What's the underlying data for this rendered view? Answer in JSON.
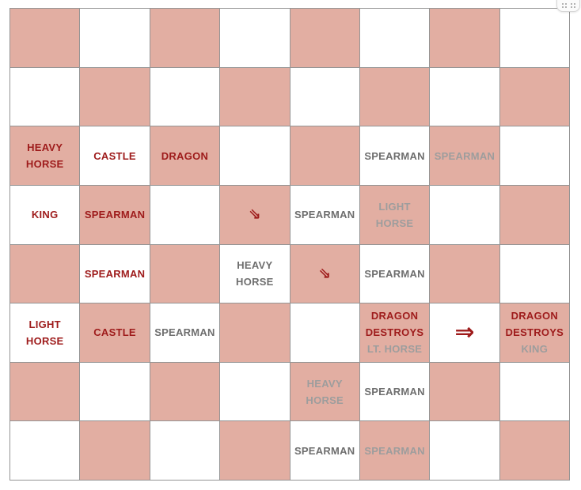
{
  "board": {
    "rows": 8,
    "cols": 8,
    "colors": {
      "light_square": "#FFFFFF",
      "dark_square": "#E2AEA2",
      "grid_line": "#949494",
      "red_text": "#9E1B1B",
      "gray_text_on_light": "#6E6E6E",
      "gray_text_on_dark": "#9D9D9D"
    },
    "pieces": [
      {
        "row": 3,
        "col": 1,
        "name": "heavy-horse",
        "lines": [
          {
            "text": "HEAVY",
            "color": "red"
          },
          {
            "text": "HORSE",
            "color": "red"
          }
        ]
      },
      {
        "row": 3,
        "col": 2,
        "name": "castle",
        "lines": [
          {
            "text": "CASTLE",
            "color": "red"
          }
        ]
      },
      {
        "row": 3,
        "col": 3,
        "name": "dragon",
        "lines": [
          {
            "text": "DRAGON",
            "color": "red"
          }
        ]
      },
      {
        "row": 3,
        "col": 6,
        "name": "spearman",
        "lines": [
          {
            "text": "SPEARMAN",
            "color": "gray"
          }
        ]
      },
      {
        "row": 3,
        "col": 7,
        "name": "spearman",
        "lines": [
          {
            "text": "SPEARMAN",
            "color": "gray"
          }
        ]
      },
      {
        "row": 4,
        "col": 1,
        "name": "king",
        "lines": [
          {
            "text": "KING",
            "color": "red"
          }
        ]
      },
      {
        "row": 4,
        "col": 2,
        "name": "spearman",
        "lines": [
          {
            "text": "SPEARMAN",
            "color": "red"
          }
        ]
      },
      {
        "row": 4,
        "col": 4,
        "name": "southeast-arrow",
        "glyph": "⇘"
      },
      {
        "row": 4,
        "col": 5,
        "name": "spearman",
        "lines": [
          {
            "text": "SPEARMAN",
            "color": "gray"
          }
        ]
      },
      {
        "row": 4,
        "col": 6,
        "name": "light-horse",
        "lines": [
          {
            "text": "LIGHT",
            "color": "gray"
          },
          {
            "text": "HORSE",
            "color": "gray"
          }
        ]
      },
      {
        "row": 5,
        "col": 2,
        "name": "spearman",
        "lines": [
          {
            "text": "SPEARMAN",
            "color": "red"
          }
        ]
      },
      {
        "row": 5,
        "col": 4,
        "name": "heavy-horse",
        "lines": [
          {
            "text": "HEAVY",
            "color": "gray"
          },
          {
            "text": "HORSE",
            "color": "gray"
          }
        ]
      },
      {
        "row": 5,
        "col": 5,
        "name": "southeast-arrow",
        "glyph": "⇘"
      },
      {
        "row": 5,
        "col": 6,
        "name": "spearman",
        "lines": [
          {
            "text": "SPEARMAN",
            "color": "gray"
          }
        ]
      },
      {
        "row": 6,
        "col": 1,
        "name": "light-horse",
        "lines": [
          {
            "text": "LIGHT",
            "color": "red"
          },
          {
            "text": "HORSE",
            "color": "red"
          }
        ]
      },
      {
        "row": 6,
        "col": 2,
        "name": "castle",
        "lines": [
          {
            "text": "CASTLE",
            "color": "red"
          }
        ]
      },
      {
        "row": 6,
        "col": 3,
        "name": "spearman",
        "lines": [
          {
            "text": "SPEARMAN",
            "color": "gray"
          }
        ]
      },
      {
        "row": 6,
        "col": 6,
        "name": "dragon-destroys-lt-horse",
        "lines": [
          {
            "text": "DRAGON",
            "color": "red"
          },
          {
            "text": "DESTROYS",
            "color": "red"
          },
          {
            "text": "LT. HORSE",
            "color": "gray"
          }
        ]
      },
      {
        "row": 6,
        "col": 7,
        "name": "double-right-arrow",
        "glyph": "⇒"
      },
      {
        "row": 6,
        "col": 8,
        "name": "dragon-destroys-king",
        "lines": [
          {
            "text": "DRAGON",
            "color": "red"
          },
          {
            "text": "DESTROYS",
            "color": "red"
          },
          {
            "text": "KING",
            "color": "gray"
          }
        ]
      },
      {
        "row": 7,
        "col": 5,
        "name": "heavy-horse",
        "lines": [
          {
            "text": "HEAVY",
            "color": "gray"
          },
          {
            "text": "HORSE",
            "color": "gray"
          }
        ]
      },
      {
        "row": 7,
        "col": 6,
        "name": "spearman",
        "lines": [
          {
            "text": "SPEARMAN",
            "color": "gray"
          }
        ]
      },
      {
        "row": 8,
        "col": 5,
        "name": "spearman",
        "lines": [
          {
            "text": "SPEARMAN",
            "color": "gray"
          }
        ]
      },
      {
        "row": 8,
        "col": 6,
        "name": "spearman",
        "lines": [
          {
            "text": "SPEARMAN",
            "color": "gray"
          }
        ]
      }
    ]
  },
  "corner_widget": {
    "dot_groups": 2,
    "dots_per_group": 4
  }
}
